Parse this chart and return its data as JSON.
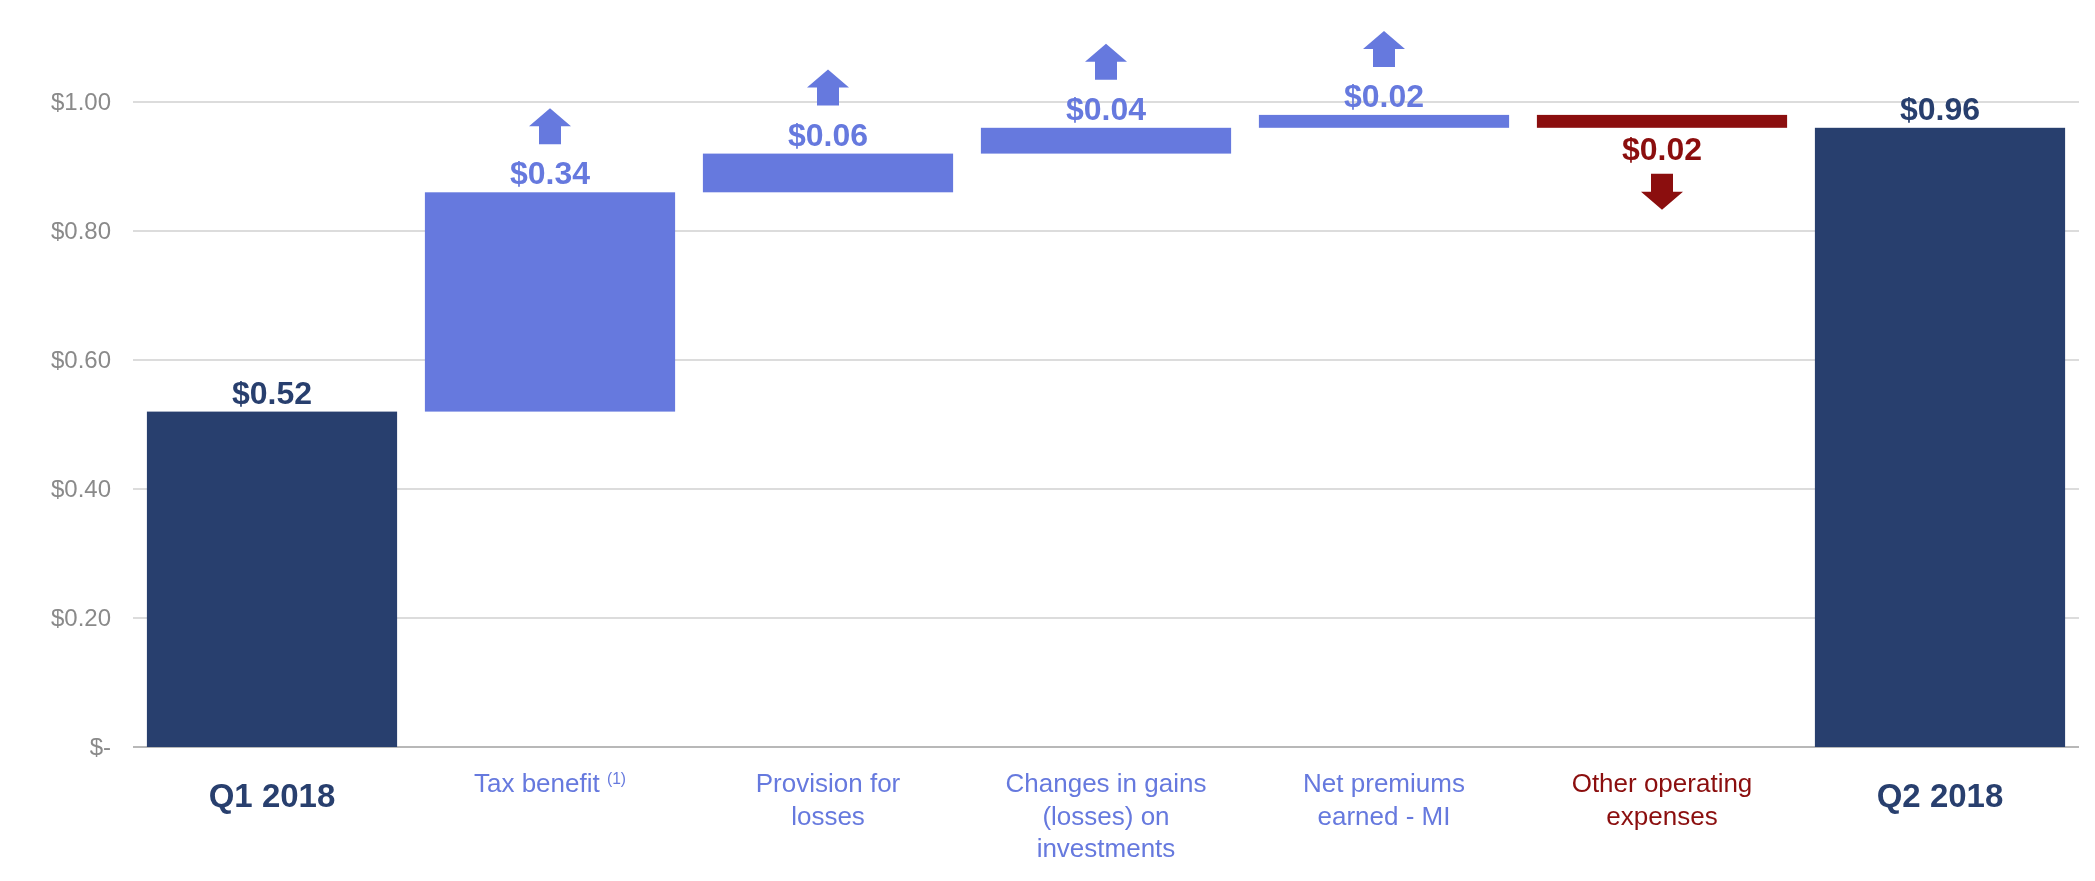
{
  "chart_data": {
    "type": "bar",
    "categories": [
      "Q1 2018",
      "Tax benefit $^{(1)}$",
      "Provision for losses",
      "Changes in gains (losses) on investments",
      "Net premiums earned - MI",
      "Other operating expenses",
      "Q2 2018"
    ],
    "values": [
      0.52,
      0.34,
      0.06,
      0.04,
      0.02,
      -0.02,
      0.96
    ],
    "base": [
      0,
      0.52,
      0.86,
      0.92,
      0.96,
      0.98,
      0
    ],
    "colors": [
      "#283f6e",
      "#6679de",
      "#6679de",
      "#6679de",
      "#6679de",
      "#8b0e0e",
      "#283f6e"
    ],
    "value_labels": [
      "$0.52",
      "$0.34",
      "$0.06",
      "$0.04",
      "$0.02",
      "$0.02",
      "$0.96"
    ],
    "ylim": [
      0,
      1
    ],
    "yticks": [
      {
        "value": 0,
        "label": "$-"
      },
      {
        "value": 0.2,
        "label": "$0.20"
      },
      {
        "value": 0.4,
        "label": "$0.40"
      },
      {
        "value": 0.6,
        "label": "$0.60"
      },
      {
        "value": 0.8,
        "label": "$0.80"
      },
      {
        "value": 1,
        "label": "$1.00"
      }
    ],
    "grid": "y"
  }
}
